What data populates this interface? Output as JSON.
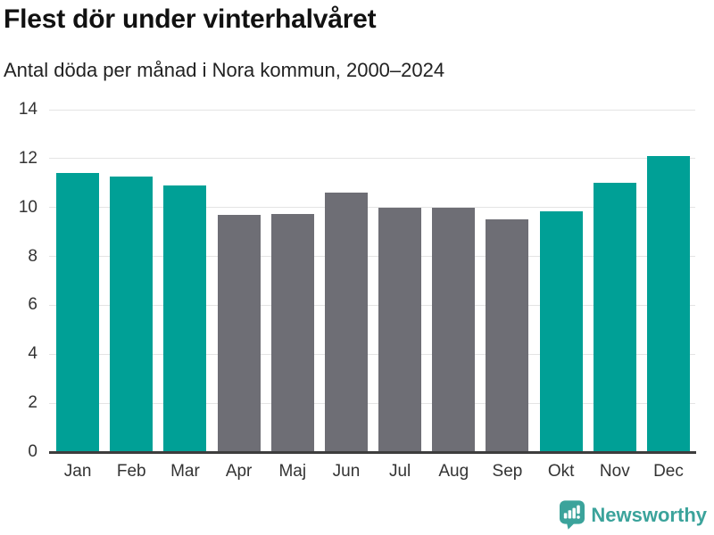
{
  "header": {
    "title": "Flest dör under vinterhalvåret",
    "subtitle": "Antal döda per månad i Nora kommun, 2000–2024"
  },
  "chart_data": {
    "type": "bar",
    "title": "Flest dör under vinterhalvåret",
    "subtitle": "Antal döda per månad i Nora kommun, 2000–2024",
    "categories": [
      "Jan",
      "Feb",
      "Mar",
      "Apr",
      "Maj",
      "Jun",
      "Jul",
      "Aug",
      "Sep",
      "Okt",
      "Nov",
      "Dec"
    ],
    "values": [
      11.4,
      11.25,
      10.9,
      9.7,
      9.75,
      10.6,
      10.0,
      10.0,
      9.5,
      9.85,
      11.0,
      12.1
    ],
    "bar_colors": [
      "#00a096",
      "#00a096",
      "#00a096",
      "#6e6e75",
      "#6e6e75",
      "#6e6e75",
      "#6e6e75",
      "#6e6e75",
      "#6e6e75",
      "#00a096",
      "#00a096",
      "#00a096"
    ],
    "color_meaning": {
      "#00a096": "winter-half-year months",
      "#6e6e75": "summer-half-year months"
    },
    "xlabel": "",
    "ylabel": "",
    "ylim": [
      0,
      14
    ],
    "yticks": [
      0,
      2,
      4,
      6,
      8,
      10,
      12,
      14
    ],
    "grid": "horizontal",
    "legend": "none"
  },
  "style_colors": {
    "bar_winter": "#00a096",
    "bar_summer": "#6e6e75",
    "gridline": "#e4e4e4",
    "axis": "#3d3d3d",
    "logo_teal": "#3ba39b"
  },
  "footer": {
    "brand": "Newsworthy",
    "icon": "newsworthy-speech-bubble-barchart-icon"
  }
}
